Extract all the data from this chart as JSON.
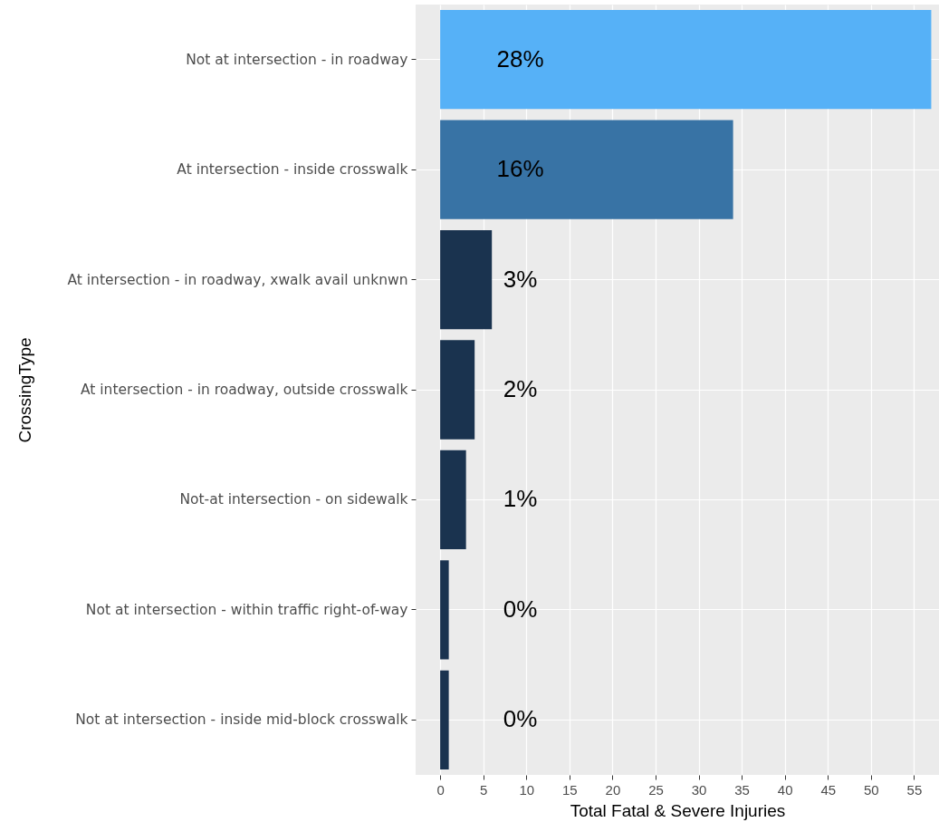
{
  "chart_data": {
    "type": "bar",
    "orientation": "horizontal",
    "categories": [
      "Not at intersection - in roadway",
      "At intersection - inside crosswalk",
      "At intersection - in roadway, xwalk avail unknwn",
      "At intersection - in roadway, outside crosswalk",
      "Not-at intersection - on sidewalk",
      "Not at intersection - within traffic right-of-way",
      "Not at intersection - inside mid-block crosswalk"
    ],
    "values": [
      57,
      34,
      6,
      4,
      3,
      1,
      1
    ],
    "colors": [
      "#56b1f7",
      "#3873a5",
      "#1a334f",
      "#1a334f",
      "#1a334f",
      "#1a334f",
      "#1a334f"
    ],
    "annotations": [
      "28%",
      "16%",
      "3%",
      "2%",
      "1%",
      "0%",
      "0%"
    ],
    "xlabel": "Total Fatal & Severe Injuries",
    "ylabel": "CrossingType",
    "xlim": [
      -2.85,
      57.9
    ],
    "xticks": [
      0,
      5,
      10,
      15,
      20,
      25,
      30,
      35,
      40,
      45,
      50,
      55
    ],
    "grid": true
  }
}
